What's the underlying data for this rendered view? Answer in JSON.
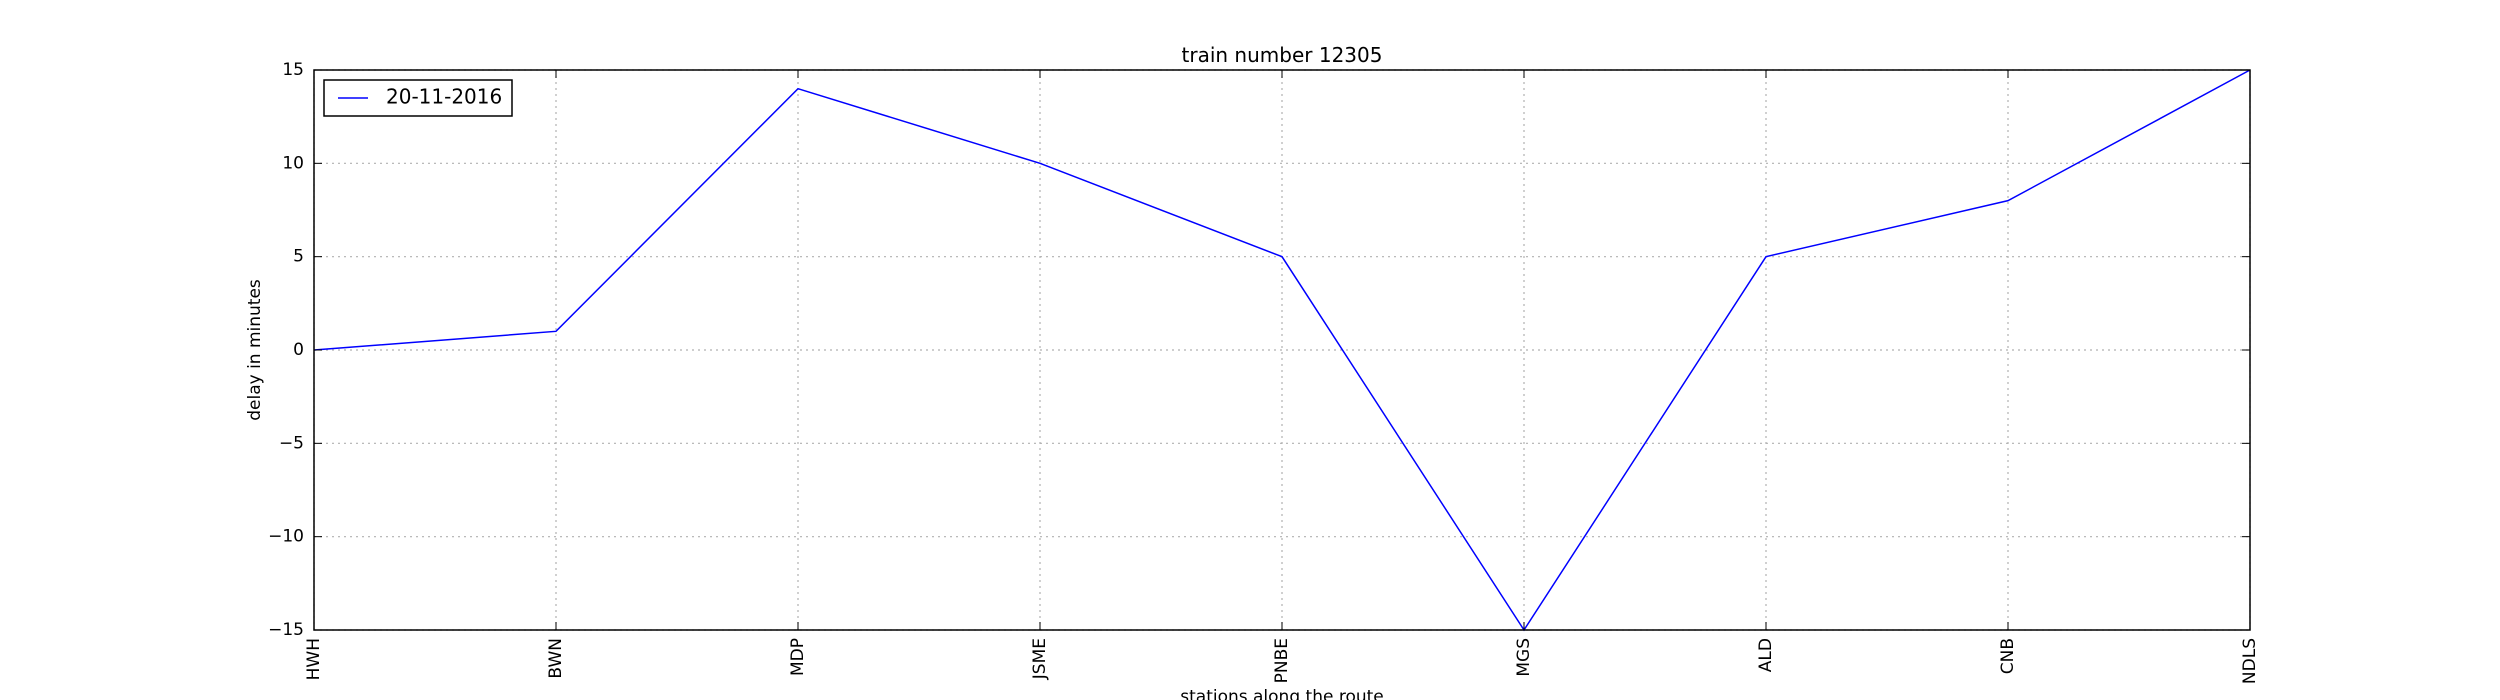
{
  "chart_data": {
    "type": "line",
    "title": "train number 12305",
    "xlabel": "stations along the route",
    "ylabel": "delay in minutes",
    "categories": [
      "HWH",
      "BWN",
      "MDP",
      "JSME",
      "PNBE",
      "MGS",
      "ALD",
      "CNB",
      "NDLS"
    ],
    "series": [
      {
        "name": "20-11-2016",
        "values": [
          0,
          1,
          14,
          10,
          5,
          -15,
          5,
          8,
          15
        ],
        "color": "#0000ff"
      }
    ],
    "ylim": [
      -15,
      15
    ],
    "yticks": [
      15,
      10,
      5,
      0,
      -5,
      -10,
      -15
    ],
    "ytick_labels": [
      "15",
      "10",
      "5",
      "0",
      "−5",
      "−10",
      "−15"
    ],
    "grid": true,
    "legend_position": "top-left"
  }
}
